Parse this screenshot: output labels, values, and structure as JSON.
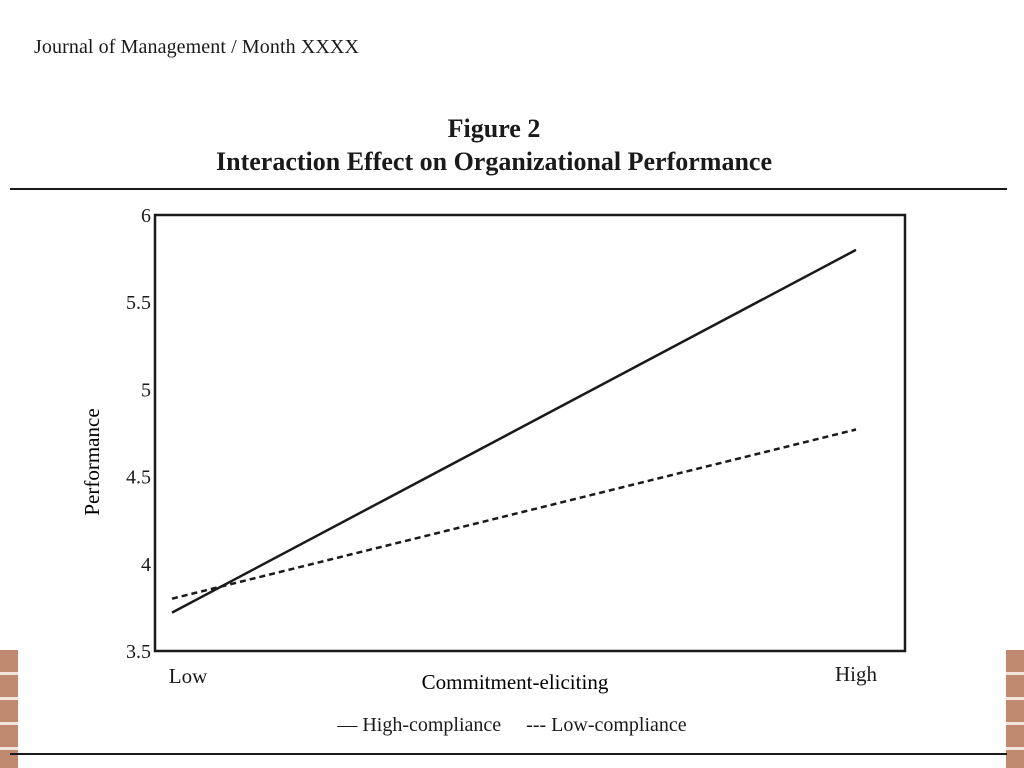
{
  "page": {
    "running_head": "Journal of Management / Month XXXX",
    "figure_number": "Figure 2",
    "figure_caption": "Interaction Effect on Organizational Performance"
  },
  "legend": {
    "high_compliance": "— High-compliance",
    "low_compliance": "--- Low-compliance"
  },
  "chart_data": {
    "type": "line",
    "title": "Figure 2",
    "subtitle": "Interaction Effect on Organizational Performance",
    "xlabel": "Commitment-eliciting",
    "ylabel": "Performance",
    "categories": [
      "Low",
      "High"
    ],
    "ylim": [
      3.5,
      6
    ],
    "yticks": [
      "3.5",
      "4",
      "4.5",
      "5",
      "5.5",
      "6"
    ],
    "grid": false,
    "legend_position": "bottom",
    "series": [
      {
        "name": "High-compliance",
        "style": "solid",
        "values": [
          3.72,
          5.8
        ]
      },
      {
        "name": "Low-compliance",
        "style": "dashed",
        "values": [
          3.8,
          4.77
        ]
      }
    ]
  },
  "colors": {
    "ink": "#1a1a1a",
    "brick": "#c08a70",
    "mortar": "#f2e6dc"
  }
}
